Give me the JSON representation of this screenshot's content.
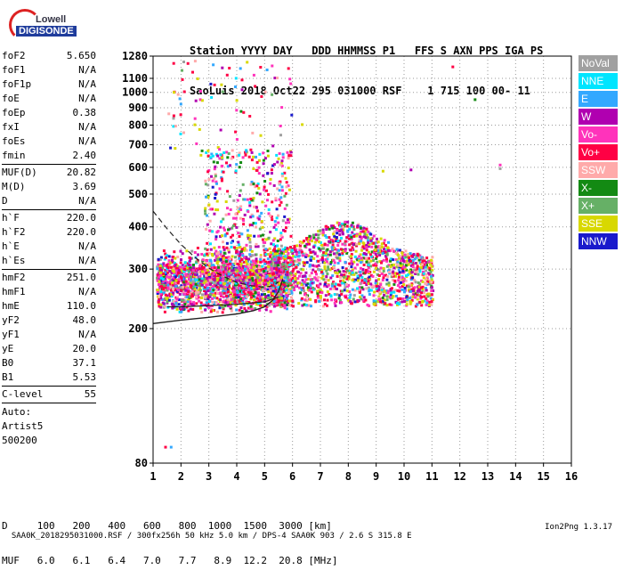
{
  "logo": {
    "brand": "Lowell",
    "product": "DIGISONDE"
  },
  "header": {
    "line1": "Station YYYY DAY   DDD HHMMSS P1   FFS S AXN PPS IGA PS",
    "line2": "SaoLuis 2018 Oct22 295 031000 RSF    1 715 100 00- 11"
  },
  "params": [
    {
      "group": [
        {
          "label": "foF2",
          "value": "5.650"
        },
        {
          "label": "foF1",
          "value": "N/A"
        },
        {
          "label": "foF1p",
          "value": "N/A"
        },
        {
          "label": "foE",
          "value": "N/A"
        },
        {
          "label": "foEp",
          "value": "0.38"
        },
        {
          "label": "fxI",
          "value": "N/A"
        },
        {
          "label": "foEs",
          "value": "N/A"
        },
        {
          "label": "fmin",
          "value": "2.40"
        }
      ]
    },
    {
      "group": [
        {
          "label": "MUF(D)",
          "value": "20.82"
        },
        {
          "label": "M(D)",
          "value": "3.69"
        },
        {
          "label": "D",
          "value": "N/A"
        }
      ]
    },
    {
      "group": [
        {
          "label": "h`F",
          "value": "220.0"
        },
        {
          "label": "h`F2",
          "value": "220.0"
        },
        {
          "label": "h`E",
          "value": "N/A"
        },
        {
          "label": "h`Es",
          "value": "N/A"
        }
      ]
    },
    {
      "group": [
        {
          "label": "hmF2",
          "value": "251.0"
        },
        {
          "label": "hmF1",
          "value": "N/A"
        },
        {
          "label": "hmE",
          "value": "110.0"
        },
        {
          "label": "yF2",
          "value": "48.0"
        },
        {
          "label": "yF1",
          "value": "N/A"
        },
        {
          "label": "yE",
          "value": "20.0"
        },
        {
          "label": "B0",
          "value": "37.1"
        },
        {
          "label": "B1",
          "value": "5.53"
        }
      ]
    },
    {
      "group": [
        {
          "label": "C-level",
          "value": "55"
        }
      ]
    }
  ],
  "auto": [
    "Auto:",
    "Artist5",
    "500200"
  ],
  "legend": [
    {
      "name": "NoVal",
      "color": "#a0a0a0"
    },
    {
      "name": "NNE",
      "color": "#00e5ff"
    },
    {
      "name": "E",
      "color": "#33a8ff"
    },
    {
      "name": "W",
      "color": "#b000b0"
    },
    {
      "name": "Vo-",
      "color": "#ff33bb"
    },
    {
      "name": "Vo+",
      "color": "#ff0044"
    },
    {
      "name": "SSW",
      "color": "#ffaaaa"
    },
    {
      "name": "X-",
      "color": "#138a13"
    },
    {
      "name": "X+",
      "color": "#66b066"
    },
    {
      "name": "SSE",
      "color": "#d8d800"
    },
    {
      "name": "NNW",
      "color": "#1a1acc"
    }
  ],
  "chart_data": {
    "type": "scatter",
    "xlim": [
      1,
      16
    ],
    "ylim_km": [
      80,
      1280
    ],
    "y_scale": "log",
    "x_ticks": [
      "1",
      "2",
      "3",
      "4",
      "5",
      "6",
      "7",
      "8",
      "9",
      "10",
      "11",
      "12",
      "13",
      "14",
      "15",
      "16"
    ],
    "y_ticks": [
      {
        "v": 80,
        "label": "80"
      },
      {
        "v": 200,
        "label": "200"
      },
      {
        "v": 300,
        "label": "300"
      },
      {
        "v": 400,
        "label": "400"
      },
      {
        "v": 500,
        "label": "500"
      },
      {
        "v": 600,
        "label": "600"
      },
      {
        "v": 700,
        "label": "700"
      },
      {
        "v": 800,
        "label": "800"
      },
      {
        "v": 900,
        "label": "900"
      },
      {
        "v": 1000,
        "label": "1000"
      },
      {
        "v": 1100,
        "label": "1100"
      },
      {
        "v": 1280,
        "label": "1280"
      }
    ],
    "grid": "dotted",
    "trace_fitted": [
      [
        1.0,
        207
      ],
      [
        2.0,
        212
      ],
      [
        3.0,
        216
      ],
      [
        4.0,
        221
      ],
      [
        4.6,
        226
      ],
      [
        5.0,
        232
      ],
      [
        5.3,
        243
      ],
      [
        5.5,
        258
      ],
      [
        5.65,
        280
      ]
    ],
    "trace_extrapolated": [
      [
        1.0,
        445
      ],
      [
        1.5,
        395
      ],
      [
        2.0,
        355
      ],
      [
        2.5,
        325
      ],
      [
        3.0,
        302
      ],
      [
        3.5,
        286
      ],
      [
        4.0,
        274
      ],
      [
        4.5,
        268
      ],
      [
        5.0,
        265
      ],
      [
        5.3,
        268
      ],
      [
        5.5,
        275
      ]
    ],
    "trace_lower": [
      [
        1.5,
        232
      ],
      [
        2.0,
        232
      ],
      [
        3.0,
        234
      ],
      [
        4.0,
        236
      ],
      [
        5.0,
        240
      ],
      [
        5.5,
        248
      ]
    ]
  },
  "range_table": {
    "d_label": "D",
    "d_values": [
      "100",
      "200",
      "400",
      "600",
      "800",
      "1000",
      "1500",
      "3000"
    ],
    "d_unit": "[km]",
    "muf_label": "MUF",
    "muf_values": [
      "6.0",
      "6.1",
      "6.4",
      "7.0",
      "7.7",
      "8.9",
      "12.2",
      "20.8"
    ],
    "muf_unit": "[MHz]"
  },
  "footer": {
    "text": "SAA0K_2018295031000.RSF / 300fx256h 50 kHz 5.0 km / DPS-4 SAA0K 903 / 2.6 S 315.8 E",
    "version": "Ion2Png 1.3.17"
  }
}
